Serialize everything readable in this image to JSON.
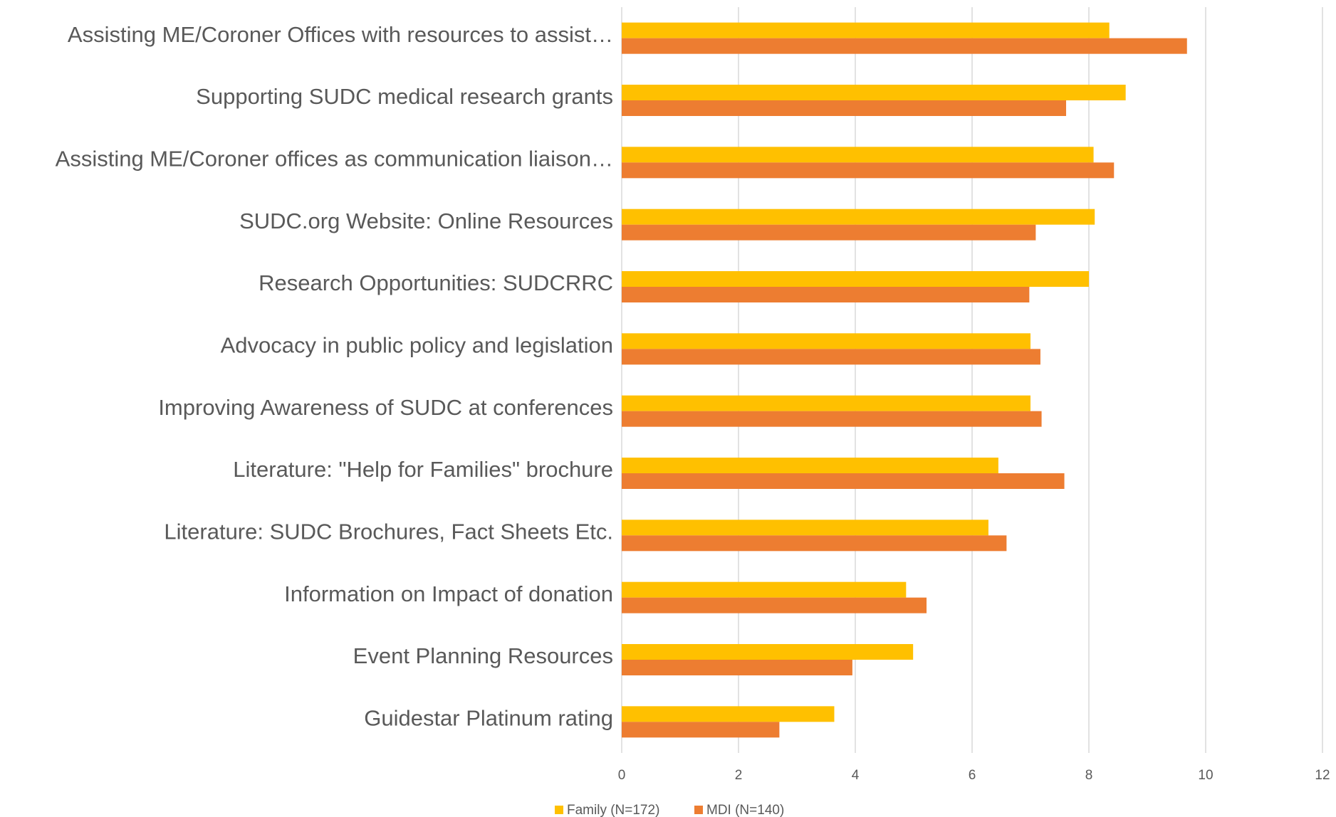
{
  "chart_data": {
    "type": "bar",
    "orientation": "horizontal",
    "categories": [
      "Assisting ME/Coroner Offices with resources to assist…",
      "Supporting SUDC medical research grants",
      "Assisting ME/Coroner offices as communication liaison…",
      "SUDC.org Website: Online Resources",
      "Research Opportunities: SUDCRRC",
      "Advocacy in public policy and legislation",
      "Improving Awareness of SUDC at conferences",
      "Literature: \"Help for Families\" brochure",
      "Literature: SUDC Brochures, Fact Sheets Etc.",
      "Information on Impact of donation",
      "Event Planning Resources",
      "Guidestar Platinum rating"
    ],
    "series": [
      {
        "name": "Family (N=172)",
        "color": "#FFC000",
        "values": [
          8.35,
          8.63,
          8.08,
          8.1,
          8.0,
          7.0,
          7.0,
          6.45,
          6.28,
          4.87,
          4.99,
          3.64
        ]
      },
      {
        "name": "MDI (N=140)",
        "color": "#ED7D31",
        "values": [
          9.68,
          7.61,
          8.43,
          7.09,
          6.98,
          7.17,
          7.19,
          7.58,
          6.59,
          5.22,
          3.95,
          2.7
        ]
      }
    ],
    "xlim": [
      0,
      12
    ],
    "xticks": [
      0,
      2,
      4,
      6,
      8,
      10,
      12
    ],
    "grid": true,
    "legend": "bottom"
  }
}
